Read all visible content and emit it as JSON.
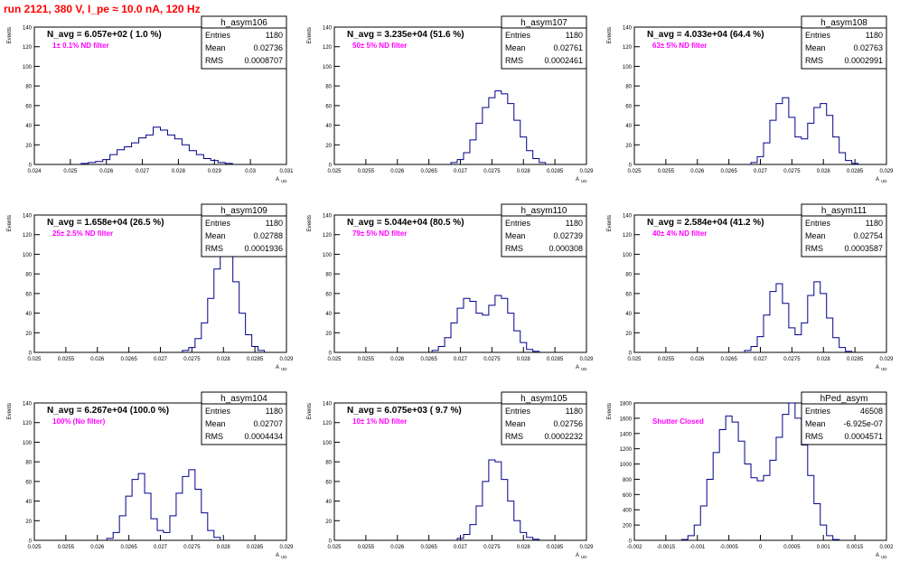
{
  "header": {
    "title": "run 2121,   380 V, I_pe ≈ 10.0 nA, 120 Hz"
  },
  "colors": {
    "title": "#ff0000",
    "histogram": "#00008b",
    "annotation": "#ff00ff",
    "frame": "#000000"
  },
  "axis_labels": {
    "y": "Events",
    "x": "A",
    "x_sub": "UD"
  },
  "stats_labels": {
    "entries": "Entries",
    "mean": "Mean",
    "rms": "RMS"
  },
  "chart_data": [
    {
      "type": "bar",
      "name": "h_asym106",
      "title": "N_avg = 6.057e+02 ( 1.0 %)",
      "annotation": "1± 0.1% ND filter",
      "stats": {
        "entries": "1180",
        "mean": "0.02736",
        "rms": "0.0008707"
      },
      "xlim": [
        0.024,
        0.031
      ],
      "ylim": [
        0,
        140
      ],
      "xticks": [
        0.024,
        0.025,
        0.026,
        0.027,
        0.028,
        0.029,
        0.03,
        0.031
      ],
      "xtick_labels": [
        "0.024",
        "0.025",
        "0.026",
        "0.027",
        "0.028",
        "0.029",
        "0.03",
        "0.031"
      ],
      "yticks": [
        0,
        20,
        40,
        60,
        80,
        100,
        120,
        140
      ],
      "bins": [
        [
          0.0254,
          1
        ],
        [
          0.0256,
          2
        ],
        [
          0.0258,
          3
        ],
        [
          0.026,
          5
        ],
        [
          0.0262,
          10
        ],
        [
          0.0264,
          15
        ],
        [
          0.0266,
          18
        ],
        [
          0.0268,
          22
        ],
        [
          0.027,
          27
        ],
        [
          0.0272,
          30
        ],
        [
          0.0274,
          38
        ],
        [
          0.0276,
          35
        ],
        [
          0.0278,
          30
        ],
        [
          0.028,
          26
        ],
        [
          0.0282,
          20
        ],
        [
          0.0284,
          14
        ],
        [
          0.0286,
          10
        ],
        [
          0.0288,
          6
        ],
        [
          0.029,
          4
        ],
        [
          0.0292,
          2
        ],
        [
          0.0294,
          1
        ]
      ]
    },
    {
      "type": "bar",
      "name": "h_asym107",
      "title": "N_avg = 3.235e+04 (51.6 %)",
      "annotation": "50± 5% ND filter",
      "stats": {
        "entries": "1180",
        "mean": "0.02761",
        "rms": "0.0002461"
      },
      "xlim": [
        0.025,
        0.029
      ],
      "ylim": [
        0,
        140
      ],
      "xticks": [
        0.025,
        0.0255,
        0.026,
        0.0265,
        0.027,
        0.0275,
        0.028,
        0.0285,
        0.029
      ],
      "xtick_labels": [
        "0.025",
        "0.0255",
        "0.026",
        "0.0265",
        "0.027",
        "0.0275",
        "0.028",
        "0.0285",
        "0.029"
      ],
      "yticks": [
        0,
        20,
        40,
        60,
        80,
        100,
        120,
        140
      ],
      "bins": [
        [
          0.0269,
          2
        ],
        [
          0.027,
          5
        ],
        [
          0.0271,
          12
        ],
        [
          0.0272,
          25
        ],
        [
          0.0273,
          42
        ],
        [
          0.0274,
          58
        ],
        [
          0.0275,
          68
        ],
        [
          0.0276,
          75
        ],
        [
          0.0277,
          72
        ],
        [
          0.0278,
          62
        ],
        [
          0.0279,
          45
        ],
        [
          0.028,
          28
        ],
        [
          0.0281,
          14
        ],
        [
          0.0282,
          6
        ],
        [
          0.0283,
          2
        ]
      ]
    },
    {
      "type": "bar",
      "name": "h_asym108",
      "title": "N_avg = 4.033e+04 (64.4 %)",
      "annotation": "63± 5% ND filter",
      "stats": {
        "entries": "1180",
        "mean": "0.02763",
        "rms": "0.0002991"
      },
      "xlim": [
        0.025,
        0.029
      ],
      "ylim": [
        0,
        140
      ],
      "xticks": [
        0.025,
        0.0255,
        0.026,
        0.0265,
        0.027,
        0.0275,
        0.028,
        0.0285,
        0.029
      ],
      "xtick_labels": [
        "0.025",
        "0.0255",
        "0.026",
        "0.0265",
        "0.027",
        "0.0275",
        "0.028",
        "0.0285",
        "0.029"
      ],
      "yticks": [
        0,
        20,
        40,
        60,
        80,
        100,
        120,
        140
      ],
      "bins": [
        [
          0.0269,
          2
        ],
        [
          0.027,
          8
        ],
        [
          0.0271,
          22
        ],
        [
          0.0272,
          45
        ],
        [
          0.0273,
          62
        ],
        [
          0.0274,
          68
        ],
        [
          0.0275,
          48
        ],
        [
          0.0276,
          28
        ],
        [
          0.0277,
          26
        ],
        [
          0.0278,
          42
        ],
        [
          0.0279,
          58
        ],
        [
          0.028,
          62
        ],
        [
          0.0281,
          50
        ],
        [
          0.0282,
          28
        ],
        [
          0.0283,
          12
        ],
        [
          0.0284,
          4
        ],
        [
          0.0285,
          1
        ]
      ]
    },
    {
      "type": "bar",
      "name": "h_asym109",
      "title": "N_avg = 1.658e+04 (26.5 %)",
      "annotation": "25± 2.5% ND filter",
      "stats": {
        "entries": "1180",
        "mean": "0.02788",
        "rms": "0.0001936"
      },
      "xlim": [
        0.025,
        0.029
      ],
      "ylim": [
        0,
        140
      ],
      "xticks": [
        0.025,
        0.0255,
        0.026,
        0.0265,
        0.027,
        0.0275,
        0.028,
        0.0285,
        0.029
      ],
      "xtick_labels": [
        "0.025",
        "0.0255",
        "0.026",
        "0.0265",
        "0.027",
        "0.0275",
        "0.028",
        "0.0285",
        "0.029"
      ],
      "yticks": [
        0,
        20,
        40,
        60,
        80,
        100,
        120,
        140
      ],
      "bins": [
        [
          0.0274,
          2
        ],
        [
          0.0275,
          5
        ],
        [
          0.0276,
          14
        ],
        [
          0.0277,
          30
        ],
        [
          0.0278,
          55
        ],
        [
          0.0279,
          85
        ],
        [
          0.028,
          110
        ],
        [
          0.0281,
          105
        ],
        [
          0.0282,
          72
        ],
        [
          0.0283,
          40
        ],
        [
          0.0284,
          18
        ],
        [
          0.0285,
          6
        ],
        [
          0.0286,
          2
        ]
      ]
    },
    {
      "type": "bar",
      "name": "h_asym110",
      "title": "N_avg = 5.044e+04 (80.5 %)",
      "annotation": "79± 5% ND filter",
      "stats": {
        "entries": "1180",
        "mean": "0.02739",
        "rms": "0.000308"
      },
      "xlim": [
        0.025,
        0.029
      ],
      "ylim": [
        0,
        140
      ],
      "xticks": [
        0.025,
        0.0255,
        0.026,
        0.0265,
        0.027,
        0.0275,
        0.028,
        0.0285,
        0.029
      ],
      "xtick_labels": [
        "0.025",
        "0.0255",
        "0.026",
        "0.0265",
        "0.027",
        "0.0275",
        "0.028",
        "0.0285",
        "0.029"
      ],
      "yticks": [
        0,
        20,
        40,
        60,
        80,
        100,
        120,
        140
      ],
      "bins": [
        [
          0.0266,
          2
        ],
        [
          0.0267,
          6
        ],
        [
          0.0268,
          15
        ],
        [
          0.0269,
          30
        ],
        [
          0.027,
          45
        ],
        [
          0.0271,
          55
        ],
        [
          0.0272,
          52
        ],
        [
          0.0273,
          40
        ],
        [
          0.0274,
          38
        ],
        [
          0.0275,
          48
        ],
        [
          0.0276,
          58
        ],
        [
          0.0277,
          55
        ],
        [
          0.0278,
          40
        ],
        [
          0.0279,
          22
        ],
        [
          0.028,
          10
        ],
        [
          0.0281,
          3
        ],
        [
          0.0282,
          1
        ]
      ]
    },
    {
      "type": "bar",
      "name": "h_asym111",
      "title": "N_avg = 2.584e+04 (41.2 %)",
      "annotation": "40± 4% ND filter",
      "stats": {
        "entries": "1180",
        "mean": "0.02754",
        "rms": "0.0003587"
      },
      "xlim": [
        0.025,
        0.029
      ],
      "ylim": [
        0,
        140
      ],
      "xticks": [
        0.025,
        0.0255,
        0.026,
        0.0265,
        0.027,
        0.0275,
        0.028,
        0.0285,
        0.029
      ],
      "xtick_labels": [
        "0.025",
        "0.0255",
        "0.026",
        "0.0265",
        "0.027",
        "0.0275",
        "0.028",
        "0.0285",
        "0.029"
      ],
      "yticks": [
        0,
        20,
        40,
        60,
        80,
        100,
        120,
        140
      ],
      "bins": [
        [
          0.0268,
          2
        ],
        [
          0.0269,
          6
        ],
        [
          0.027,
          16
        ],
        [
          0.0271,
          38
        ],
        [
          0.0272,
          62
        ],
        [
          0.0273,
          70
        ],
        [
          0.0274,
          50
        ],
        [
          0.0275,
          25
        ],
        [
          0.0276,
          18
        ],
        [
          0.0277,
          30
        ],
        [
          0.0278,
          58
        ],
        [
          0.0279,
          72
        ],
        [
          0.028,
          60
        ],
        [
          0.0281,
          35
        ],
        [
          0.0282,
          15
        ],
        [
          0.0283,
          5
        ],
        [
          0.0284,
          1
        ]
      ]
    },
    {
      "type": "bar",
      "name": "h_asym104",
      "title": "N_avg = 6.267e+04 (100.0 %)",
      "annotation": "100% (No filter)",
      "stats": {
        "entries": "1180",
        "mean": "0.02707",
        "rms": "0.0004434"
      },
      "xlim": [
        0.025,
        0.029
      ],
      "ylim": [
        0,
        140
      ],
      "xticks": [
        0.025,
        0.0255,
        0.026,
        0.0265,
        0.027,
        0.0275,
        0.028,
        0.0285,
        0.029
      ],
      "xtick_labels": [
        "0.025",
        "0.0255",
        "0.026",
        "0.0265",
        "0.027",
        "0.0275",
        "0.028",
        "0.0285",
        "0.029"
      ],
      "yticks": [
        0,
        20,
        40,
        60,
        80,
        100,
        120,
        140
      ],
      "bins": [
        [
          0.0262,
          2
        ],
        [
          0.0263,
          8
        ],
        [
          0.0264,
          25
        ],
        [
          0.0265,
          45
        ],
        [
          0.0266,
          62
        ],
        [
          0.0267,
          68
        ],
        [
          0.0268,
          48
        ],
        [
          0.0269,
          22
        ],
        [
          0.027,
          10
        ],
        [
          0.0271,
          8
        ],
        [
          0.0272,
          25
        ],
        [
          0.0273,
          48
        ],
        [
          0.0274,
          65
        ],
        [
          0.0275,
          72
        ],
        [
          0.0276,
          52
        ],
        [
          0.0277,
          28
        ],
        [
          0.0278,
          10
        ],
        [
          0.0279,
          3
        ]
      ]
    },
    {
      "type": "bar",
      "name": "h_asym105",
      "title": "N_avg = 6.075e+03 ( 9.7 %)",
      "annotation": "10± 1% ND filter",
      "stats": {
        "entries": "1180",
        "mean": "0.02756",
        "rms": "0.0002232"
      },
      "xlim": [
        0.025,
        0.029
      ],
      "ylim": [
        0,
        140
      ],
      "xticks": [
        0.025,
        0.0255,
        0.026,
        0.0265,
        0.027,
        0.0275,
        0.028,
        0.0285,
        0.029
      ],
      "xtick_labels": [
        "0.025",
        "0.0255",
        "0.026",
        "0.0265",
        "0.027",
        "0.0275",
        "0.028",
        "0.0285",
        "0.029"
      ],
      "yticks": [
        0,
        20,
        40,
        60,
        80,
        100,
        120,
        140
      ],
      "bins": [
        [
          0.027,
          2
        ],
        [
          0.0271,
          6
        ],
        [
          0.0272,
          16
        ],
        [
          0.0273,
          35
        ],
        [
          0.0274,
          60
        ],
        [
          0.0275,
          82
        ],
        [
          0.0276,
          80
        ],
        [
          0.0277,
          62
        ],
        [
          0.0278,
          40
        ],
        [
          0.0279,
          20
        ],
        [
          0.028,
          8
        ],
        [
          0.0281,
          3
        ],
        [
          0.0282,
          1
        ]
      ]
    },
    {
      "type": "bar",
      "name": "hPed_asym",
      "title": "",
      "annotation": "Shutter Closed",
      "stats": {
        "entries": "46508",
        "mean": "-6.925e-07",
        "rms": "0.0004571"
      },
      "xlim": [
        -0.002,
        0.002
      ],
      "ylim": [
        0,
        1800
      ],
      "xticks": [
        -0.002,
        -0.0015,
        -0.001,
        -0.0005,
        0,
        0.0005,
        0.001,
        0.0015,
        0.002
      ],
      "xtick_labels": [
        "-0.002",
        "-0.0015",
        "-0.001",
        "-0.0005",
        "0",
        "0.0005",
        "0.001",
        "0.0015",
        "0.002"
      ],
      "yticks": [
        0,
        200,
        400,
        600,
        800,
        1000,
        1200,
        1400,
        1600,
        1800
      ],
      "bins": [
        [
          -0.0012,
          10
        ],
        [
          -0.0011,
          60
        ],
        [
          -0.001,
          200
        ],
        [
          -0.0009,
          450
        ],
        [
          -0.0008,
          800
        ],
        [
          -0.0007,
          1150
        ],
        [
          -0.0006,
          1450
        ],
        [
          -0.0005,
          1630
        ],
        [
          -0.0004,
          1550
        ],
        [
          -0.0003,
          1300
        ],
        [
          -0.0002,
          1000
        ],
        [
          -0.0001,
          820
        ],
        [
          0,
          780
        ],
        [
          0.0001,
          850
        ],
        [
          0.0002,
          1050
        ],
        [
          0.0003,
          1350
        ],
        [
          0.0004,
          1650
        ],
        [
          0.0005,
          1800
        ],
        [
          0.0006,
          1600
        ],
        [
          0.0007,
          1250
        ],
        [
          0.0008,
          850
        ],
        [
          0.0009,
          480
        ],
        [
          0.001,
          200
        ],
        [
          0.0011,
          60
        ],
        [
          0.0012,
          10
        ]
      ]
    }
  ]
}
